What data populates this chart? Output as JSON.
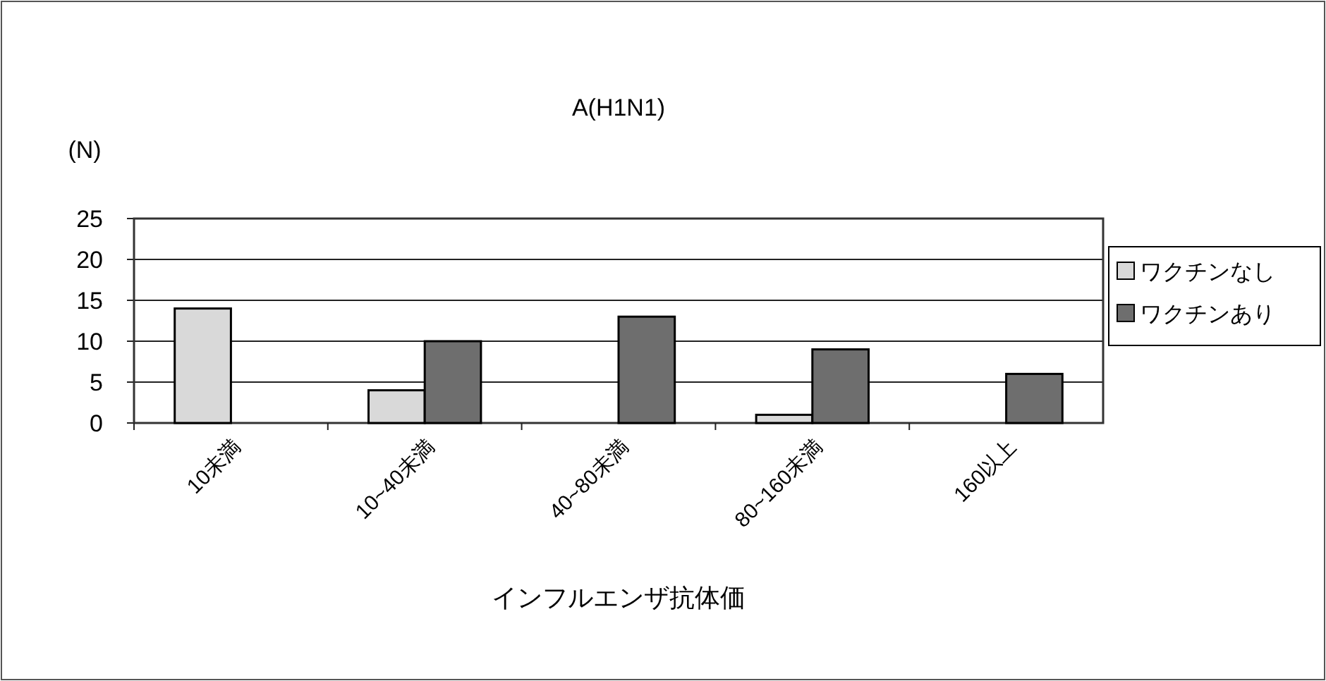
{
  "chart_data": {
    "type": "bar",
    "title": "A(H1N1)",
    "ylabel": "(N)",
    "xlabel": "インフルエンザ抗体価",
    "categories": [
      "10未満",
      "10~40未満",
      "40~80未満",
      "80~160未満",
      "160以上"
    ],
    "series": [
      {
        "name": "ワクチンなし",
        "color": "#d9d9d9",
        "values": [
          14,
          4,
          0,
          1,
          0
        ]
      },
      {
        "name": "ワクチンあり",
        "color": "#6e6e6e",
        "values": [
          0,
          10,
          13,
          9,
          6
        ]
      }
    ],
    "ylim": [
      0,
      25
    ],
    "yticks": [
      0,
      5,
      10,
      15,
      20,
      25
    ],
    "grid": "y",
    "legend": "right"
  }
}
